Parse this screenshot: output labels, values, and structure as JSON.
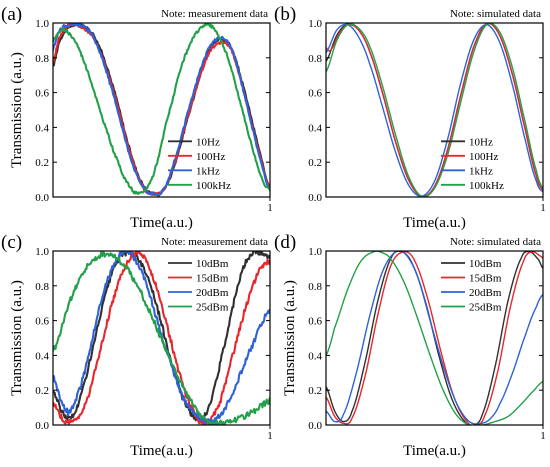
{
  "colors": {
    "black": "#303030",
    "red": "#e8262b",
    "blue": "#2f62d6",
    "green": "#23a04a"
  },
  "chart_data": [
    {
      "type": "line",
      "panel_label": "(a)",
      "note": "Note: measurement data",
      "ylabel": "Transmission (a.u.)",
      "xlabel": "Time(a.u.)",
      "xlim": [
        0,
        1
      ],
      "ylim": [
        0,
        1
      ],
      "xticks": [
        "1"
      ],
      "yticks": [
        "0.0",
        "0.2",
        "0.4",
        "0.6",
        "0.8",
        "1.0"
      ],
      "legend_position": "bottom-right",
      "noise": 0.01,
      "series": [
        {
          "name": "10Hz",
          "color": "#303030",
          "x": [
            0,
            0.03,
            0.08,
            0.14,
            0.2,
            0.28,
            0.36,
            0.42,
            0.46,
            0.5,
            0.55,
            0.62,
            0.7,
            0.76,
            0.82,
            0.88,
            0.94,
            1.0
          ],
          "y": [
            0.75,
            0.9,
            0.98,
            0.98,
            0.9,
            0.62,
            0.25,
            0.06,
            0.02,
            0.03,
            0.15,
            0.45,
            0.78,
            0.9,
            0.86,
            0.62,
            0.32,
            0.05
          ]
        },
        {
          "name": "100Hz",
          "color": "#e8262b",
          "x": [
            0,
            0.03,
            0.08,
            0.14,
            0.2,
            0.28,
            0.36,
            0.42,
            0.46,
            0.5,
            0.55,
            0.62,
            0.7,
            0.76,
            0.82,
            0.88,
            0.94,
            1.0
          ],
          "y": [
            0.78,
            0.92,
            0.99,
            0.97,
            0.88,
            0.6,
            0.24,
            0.05,
            0.02,
            0.03,
            0.16,
            0.46,
            0.77,
            0.88,
            0.85,
            0.6,
            0.3,
            0.05
          ]
        },
        {
          "name": "1kHz",
          "color": "#2f62d6",
          "x": [
            0,
            0.03,
            0.08,
            0.14,
            0.2,
            0.28,
            0.36,
            0.42,
            0.46,
            0.5,
            0.55,
            0.62,
            0.7,
            0.76,
            0.82,
            0.88,
            0.94,
            1.0
          ],
          "y": [
            0.85,
            0.96,
            0.99,
            0.98,
            0.88,
            0.58,
            0.22,
            0.05,
            0.02,
            0.03,
            0.17,
            0.48,
            0.8,
            0.91,
            0.86,
            0.6,
            0.29,
            0.04
          ]
        },
        {
          "name": "100kHz",
          "color": "#23a04a",
          "x": [
            0,
            0.04,
            0.1,
            0.16,
            0.22,
            0.3,
            0.36,
            0.4,
            0.43,
            0.47,
            0.52,
            0.6,
            0.68,
            0.74,
            0.8,
            0.86,
            0.92,
            0.97,
            1.0
          ],
          "y": [
            0.9,
            0.96,
            0.9,
            0.72,
            0.48,
            0.2,
            0.05,
            0.02,
            0.05,
            0.16,
            0.42,
            0.78,
            0.97,
            0.97,
            0.82,
            0.56,
            0.28,
            0.09,
            0.05
          ]
        }
      ]
    },
    {
      "type": "line",
      "panel_label": "(b)",
      "note": "Note: simulated data",
      "ylabel": "",
      "xlabel": "Time(a.u.)",
      "xlim": [
        0,
        1
      ],
      "ylim": [
        0,
        1
      ],
      "xticks": [
        "1"
      ],
      "yticks": [
        "0.0",
        "0.2",
        "0.4",
        "0.6",
        "0.8",
        "1.0"
      ],
      "legend_position": "bottom-right",
      "noise": 0,
      "series": [
        {
          "name": "10Hz",
          "color": "#303030",
          "x": [
            0,
            0.05,
            0.1,
            0.15,
            0.2,
            0.26,
            0.32,
            0.38,
            0.44,
            0.5,
            0.56,
            0.62,
            0.68,
            0.74,
            0.8,
            0.86,
            0.92,
            0.97,
            1.0
          ],
          "y": [
            0.78,
            0.93,
            0.995,
            0.96,
            0.84,
            0.6,
            0.32,
            0.1,
            0.005,
            0.06,
            0.27,
            0.58,
            0.86,
            0.995,
            0.93,
            0.7,
            0.38,
            0.12,
            0.04
          ]
        },
        {
          "name": "100Hz",
          "color": "#e8262b",
          "x": [
            0,
            0.012,
            0.03,
            0.06,
            0.1,
            0.15,
            0.2,
            0.26,
            0.32,
            0.38,
            0.44,
            0.5,
            0.56,
            0.62,
            0.68,
            0.74,
            0.8,
            0.86,
            0.92,
            0.97,
            1.0
          ],
          "y": [
            0.86,
            0.84,
            0.86,
            0.94,
            0.99,
            0.96,
            0.84,
            0.6,
            0.32,
            0.1,
            0.005,
            0.06,
            0.27,
            0.58,
            0.86,
            0.995,
            0.93,
            0.7,
            0.38,
            0.12,
            0.04
          ]
        },
        {
          "name": "1kHz",
          "color": "#2f62d6",
          "x": [
            0,
            0.05,
            0.1,
            0.15,
            0.2,
            0.26,
            0.32,
            0.38,
            0.44,
            0.5,
            0.56,
            0.62,
            0.68,
            0.74,
            0.8,
            0.86,
            0.92,
            0.97,
            1.0
          ],
          "y": [
            0.83,
            0.96,
            0.99,
            0.92,
            0.77,
            0.52,
            0.26,
            0.07,
            0.005,
            0.09,
            0.33,
            0.65,
            0.9,
            0.99,
            0.89,
            0.64,
            0.32,
            0.09,
            0.03
          ]
        },
        {
          "name": "100kHz",
          "color": "#23a04a",
          "x": [
            0,
            0.05,
            0.1,
            0.15,
            0.2,
            0.26,
            0.32,
            0.38,
            0.44,
            0.5,
            0.56,
            0.62,
            0.68,
            0.74,
            0.8,
            0.86,
            0.92,
            0.97,
            1.0
          ],
          "y": [
            0.72,
            0.9,
            0.99,
            0.97,
            0.87,
            0.64,
            0.36,
            0.12,
            0.005,
            0.05,
            0.24,
            0.54,
            0.83,
            0.99,
            0.95,
            0.74,
            0.42,
            0.15,
            0.05
          ]
        }
      ]
    },
    {
      "type": "line",
      "panel_label": "(c)",
      "note": "Note: measurement data",
      "ylabel": "Transmission (a.u.)",
      "xlabel": "Time(a.u.)",
      "xlim": [
        0,
        1
      ],
      "ylim": [
        0,
        1
      ],
      "xticks": [
        "1"
      ],
      "yticks": [
        "0.0",
        "0.2",
        "0.4",
        "0.6",
        "0.8",
        "1.0"
      ],
      "legend_position": "top-right",
      "noise": 0.02,
      "series": [
        {
          "name": "10dBm",
          "color": "#303030",
          "x": [
            0,
            0.04,
            0.08,
            0.12,
            0.18,
            0.24,
            0.3,
            0.34,
            0.38,
            0.44,
            0.5,
            0.56,
            0.62,
            0.66,
            0.7,
            0.74,
            0.8,
            0.86,
            0.92,
            0.96,
            1.0
          ],
          "y": [
            0.2,
            0.08,
            0.04,
            0.14,
            0.42,
            0.74,
            0.95,
            0.99,
            0.97,
            0.84,
            0.58,
            0.3,
            0.1,
            0.04,
            0.05,
            0.2,
            0.52,
            0.84,
            0.99,
            0.99,
            0.96
          ]
        },
        {
          "name": "15dBm",
          "color": "#e8262b",
          "x": [
            0,
            0.04,
            0.08,
            0.14,
            0.2,
            0.26,
            0.32,
            0.38,
            0.42,
            0.48,
            0.54,
            0.6,
            0.66,
            0.7,
            0.76,
            0.82,
            0.88,
            0.94,
            1.0
          ],
          "y": [
            0.12,
            0.04,
            0.02,
            0.09,
            0.34,
            0.64,
            0.88,
            0.99,
            0.96,
            0.78,
            0.5,
            0.22,
            0.05,
            0.02,
            0.1,
            0.36,
            0.64,
            0.86,
            0.94
          ]
        },
        {
          "name": "20dBm",
          "color": "#2f62d6",
          "x": [
            0,
            0.04,
            0.08,
            0.14,
            0.2,
            0.26,
            0.32,
            0.36,
            0.42,
            0.48,
            0.54,
            0.6,
            0.66,
            0.72,
            0.76,
            0.8,
            0.86,
            0.92,
            0.97,
            1.0
          ],
          "y": [
            0.28,
            0.13,
            0.08,
            0.28,
            0.6,
            0.86,
            0.99,
            0.98,
            0.85,
            0.6,
            0.36,
            0.16,
            0.06,
            0.02,
            0.04,
            0.12,
            0.28,
            0.46,
            0.6,
            0.65
          ]
        },
        {
          "name": "25dBm",
          "color": "#23a04a",
          "x": [
            0,
            0.04,
            0.08,
            0.14,
            0.2,
            0.26,
            0.32,
            0.36,
            0.42,
            0.48,
            0.54,
            0.6,
            0.66,
            0.72,
            0.78,
            0.82,
            0.86,
            0.9,
            0.94,
            0.98,
            1.0
          ],
          "y": [
            0.42,
            0.56,
            0.72,
            0.88,
            0.96,
            0.98,
            0.93,
            0.86,
            0.72,
            0.55,
            0.38,
            0.22,
            0.09,
            0.02,
            0.01,
            0.02,
            0.04,
            0.06,
            0.09,
            0.13,
            0.14
          ]
        }
      ]
    },
    {
      "type": "line",
      "panel_label": "(d)",
      "note": "Note: simulated data",
      "ylabel": "Transmission (a.u.)",
      "xlabel": "Time(a.u.)",
      "xlim": [
        0,
        1
      ],
      "ylim": [
        0,
        1
      ],
      "xticks": [
        "1"
      ],
      "yticks": [
        "0.0",
        "0.2",
        "0.4",
        "0.6",
        "0.8",
        "1.0"
      ],
      "legend_position": "top-right",
      "noise": 0,
      "series": [
        {
          "name": "10dBm",
          "color": "#303030",
          "x": [
            0,
            0.04,
            0.08,
            0.12,
            0.18,
            0.24,
            0.3,
            0.35,
            0.4,
            0.46,
            0.52,
            0.58,
            0.64,
            0.68,
            0.72,
            0.78,
            0.84,
            0.9,
            0.94,
            0.98,
            1.0
          ],
          "y": [
            0.22,
            0.08,
            0.02,
            0.08,
            0.36,
            0.72,
            0.96,
            0.995,
            0.92,
            0.7,
            0.4,
            0.15,
            0.02,
            0.0,
            0.06,
            0.34,
            0.72,
            0.96,
            0.995,
            0.95,
            0.9
          ]
        },
        {
          "name": "15dBm",
          "color": "#e8262b",
          "x": [
            0,
            0.04,
            0.08,
            0.12,
            0.18,
            0.24,
            0.3,
            0.36,
            0.41,
            0.47,
            0.53,
            0.59,
            0.65,
            0.69,
            0.73,
            0.79,
            0.85,
            0.91,
            0.95,
            0.99,
            1.0
          ],
          "y": [
            0.16,
            0.05,
            0.01,
            0.04,
            0.28,
            0.64,
            0.92,
            0.995,
            0.94,
            0.72,
            0.42,
            0.16,
            0.02,
            0.0,
            0.05,
            0.3,
            0.68,
            0.94,
            0.995,
            0.97,
            0.96
          ]
        },
        {
          "name": "20dBm",
          "color": "#2f62d6",
          "x": [
            0,
            0.04,
            0.08,
            0.14,
            0.2,
            0.26,
            0.32,
            0.36,
            0.42,
            0.48,
            0.54,
            0.6,
            0.66,
            0.72,
            0.76,
            0.8,
            0.86,
            0.92,
            0.97,
            1.0
          ],
          "y": [
            0.08,
            0.02,
            0.06,
            0.3,
            0.62,
            0.88,
            0.995,
            0.99,
            0.86,
            0.6,
            0.34,
            0.13,
            0.02,
            0.01,
            0.04,
            0.12,
            0.3,
            0.52,
            0.68,
            0.75
          ]
        },
        {
          "name": "25dBm",
          "color": "#23a04a",
          "x": [
            0,
            0.04,
            0.1,
            0.16,
            0.22,
            0.26,
            0.3,
            0.36,
            0.42,
            0.48,
            0.54,
            0.6,
            0.66,
            0.72,
            0.78,
            0.84,
            0.9,
            0.96,
            1.0
          ],
          "y": [
            0.4,
            0.56,
            0.78,
            0.94,
            0.995,
            0.99,
            0.95,
            0.82,
            0.62,
            0.4,
            0.2,
            0.06,
            0.0,
            0.0,
            0.02,
            0.05,
            0.12,
            0.2,
            0.25
          ]
        }
      ]
    }
  ]
}
